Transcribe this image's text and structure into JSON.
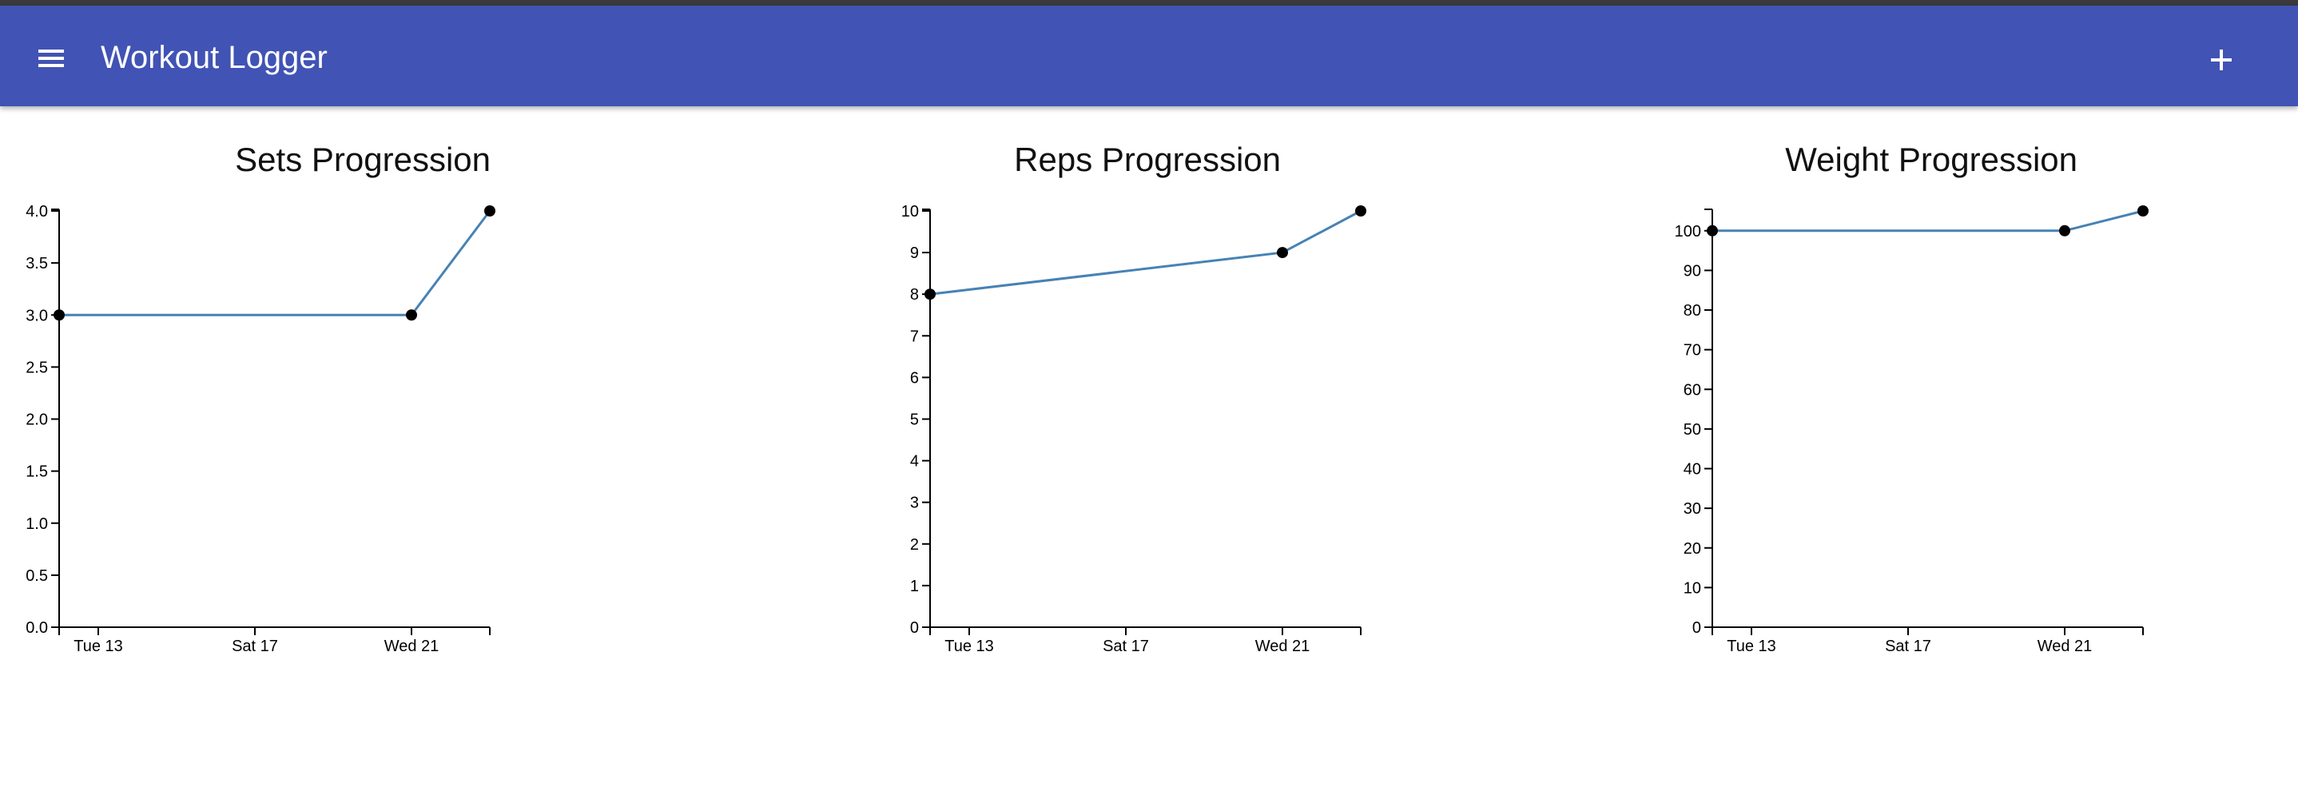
{
  "app": {
    "title": "Workout Logger",
    "menu_icon": "hamburger-menu-icon",
    "add_icon": "plus-icon",
    "accent_color": "#4153b4"
  },
  "chart_data": [
    {
      "type": "line",
      "title": "Sets Progression",
      "xlabel": "",
      "ylabel": "",
      "x_ticks": [
        "Tue 13",
        "Sat 17",
        "Wed 21"
      ],
      "y_ticks": [
        "0.0",
        "0.5",
        "1.0",
        "1.5",
        "2.0",
        "2.5",
        "3.0",
        "3.5",
        "4.0"
      ],
      "ylim": [
        0,
        4
      ],
      "series": [
        {
          "color": "#4682b4",
          "points": [
            {
              "x": "Mon 12",
              "y": 3
            },
            {
              "x": "Wed 21",
              "y": 3
            },
            {
              "x": "Fri 23",
              "y": 4
            }
          ]
        }
      ]
    },
    {
      "type": "line",
      "title": "Reps Progression",
      "xlabel": "",
      "ylabel": "",
      "x_ticks": [
        "Tue 13",
        "Sat 17",
        "Wed 21"
      ],
      "y_ticks": [
        "0",
        "1",
        "2",
        "3",
        "4",
        "5",
        "6",
        "7",
        "8",
        "9",
        "10"
      ],
      "ylim": [
        0,
        10
      ],
      "series": [
        {
          "color": "#4682b4",
          "points": [
            {
              "x": "Mon 12",
              "y": 8
            },
            {
              "x": "Wed 21",
              "y": 9
            },
            {
              "x": "Fri 23",
              "y": 10
            }
          ]
        }
      ]
    },
    {
      "type": "line",
      "title": "Weight Progression",
      "xlabel": "",
      "ylabel": "",
      "x_ticks": [
        "Tue 13",
        "Sat 17",
        "Wed 21"
      ],
      "y_ticks": [
        "0",
        "10",
        "20",
        "30",
        "40",
        "50",
        "60",
        "70",
        "80",
        "90",
        "100"
      ],
      "ylim": [
        0,
        105
      ],
      "series": [
        {
          "color": "#4682b4",
          "points": [
            {
              "x": "Mon 12",
              "y": 100
            },
            {
              "x": "Wed 21",
              "y": 100
            },
            {
              "x": "Fri 23",
              "y": 105
            }
          ]
        }
      ]
    }
  ]
}
